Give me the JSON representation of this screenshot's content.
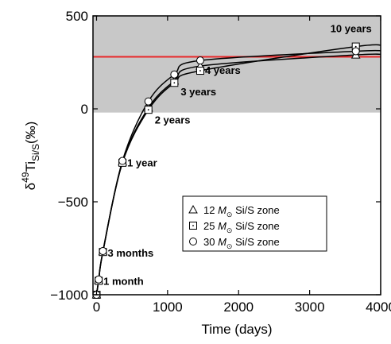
{
  "chart_data": {
    "type": "scatter",
    "title": "",
    "xlabel": "Time (days)",
    "ylabel": {
      "base": "δ",
      "sup": "49",
      "main": "Ti",
      "sub": "Si/S",
      "unit": "(‰)"
    },
    "xlim": [
      -50,
      4000
    ],
    "ylim": [
      -1000,
      500
    ],
    "xticks": [
      0,
      1000,
      2000,
      3000,
      4000
    ],
    "yticks": [
      -1000,
      -500,
      0,
      500
    ],
    "ytick_labels": [
      "−1000",
      "−500",
      "0",
      "500"
    ],
    "shaded_band": {
      "y_from": -20,
      "y_to": 500,
      "color": "#c8c8c8"
    },
    "reference_line": {
      "y": 280,
      "color": "#e8282a"
    },
    "annotations": [
      {
        "text": "1 month",
        "x": 30,
        "y": -920
      },
      {
        "text": "3 months",
        "x": 90,
        "y": -770
      },
      {
        "text": "1 year",
        "x": 365,
        "y": -285
      },
      {
        "text": "2 years",
        "x": 730,
        "y": -20
      },
      {
        "text": "3 years",
        "x": 1095,
        "y": 140
      },
      {
        "text": "4 years",
        "x": 1460,
        "y": 205
      },
      {
        "text": "10 years",
        "x": 3650,
        "y": 335
      }
    ],
    "series": [
      {
        "name": "12 M⊙ Si/S zone",
        "marker": "triangle",
        "x": [
          0,
          30,
          90,
          365,
          730,
          1095,
          1460,
          3650
        ],
        "y": [
          -1000,
          -922,
          -768,
          -285,
          5,
          150,
          230,
          290
        ]
      },
      {
        "name": "25 M⊙ Si/S zone",
        "marker": "square",
        "x": [
          0,
          30,
          90,
          365,
          730,
          1095,
          1460,
          3650
        ],
        "y": [
          -1000,
          -925,
          -770,
          -290,
          -5,
          140,
          205,
          335
        ]
      },
      {
        "name": "30 M⊙ Si/S zone",
        "marker": "circle",
        "x": [
          0,
          30,
          90,
          365,
          730,
          1095,
          1460,
          3650
        ],
        "y": [
          -1000,
          -918,
          -765,
          -280,
          40,
          185,
          260,
          310
        ]
      }
    ],
    "legend": {
      "placement": "lower-right",
      "entries": [
        {
          "prefix": "12 ",
          "mass": "M",
          "sub": "⊙",
          "suffix": " Si/S zone",
          "marker": "triangle"
        },
        {
          "prefix": "25 ",
          "mass": "M",
          "sub": "⊙",
          "suffix": " Si/S zone",
          "marker": "square"
        },
        {
          "prefix": "30 ",
          "mass": "M",
          "sub": "⊙",
          "suffix": " Si/S zone",
          "marker": "circle"
        }
      ]
    },
    "colors": {
      "band": "#c8c8c8",
      "reference": "#e8282a",
      "curve": "#000000",
      "marker_fill": "#ffffff"
    }
  }
}
